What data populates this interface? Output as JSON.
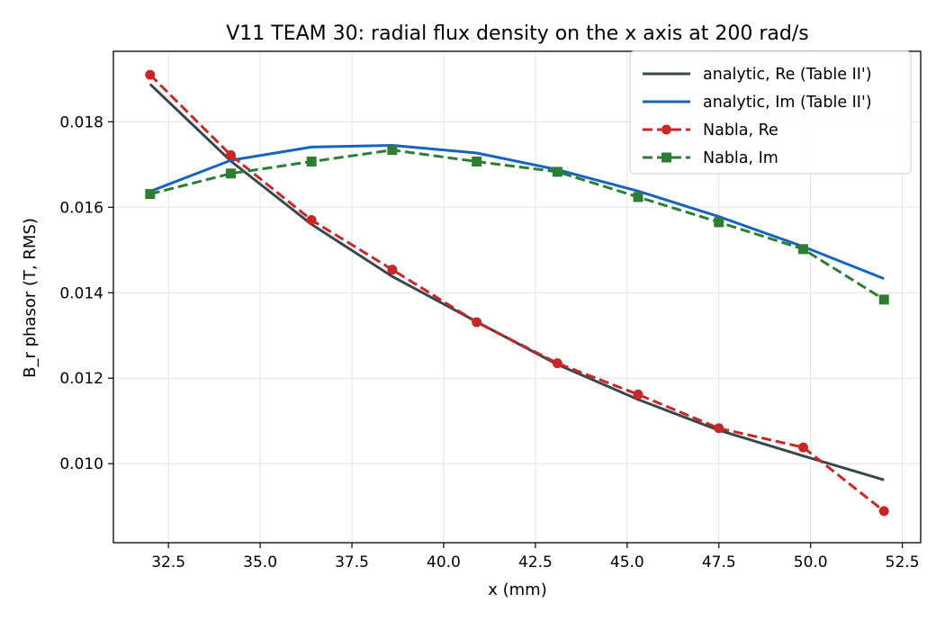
{
  "chart_data": {
    "type": "line",
    "title": "V11 TEAM 30: radial flux density on the x axis at 200 rad/s",
    "xlabel": "x (mm)",
    "ylabel": "B_r phasor (T, RMS)",
    "xlim": [
      31.0,
      53.0
    ],
    "ylim": [
      0.00815,
      0.01965
    ],
    "xticks": [
      32.5,
      35.0,
      37.5,
      40.0,
      42.5,
      45.0,
      47.5,
      50.0,
      52.5
    ],
    "xtick_labels": [
      "32.5",
      "35.0",
      "37.5",
      "40.0",
      "42.5",
      "45.0",
      "47.5",
      "50.0",
      "52.5"
    ],
    "yticks": [
      0.01,
      0.012,
      0.014,
      0.016,
      0.018
    ],
    "ytick_labels": [
      "0.010",
      "0.012",
      "0.014",
      "0.016",
      "0.018"
    ],
    "grid": true,
    "legend_position": "top-right",
    "series": [
      {
        "name": "analytic, Re (Table II')",
        "color": "#37474f",
        "style": "solid",
        "marker": "none",
        "x": [
          32.0,
          34.2,
          36.4,
          38.6,
          40.9,
          43.1,
          45.3,
          47.5,
          49.8,
          52.0
        ],
        "y": [
          0.01888,
          0.01708,
          0.0156,
          0.01438,
          0.01332,
          0.01232,
          0.0115,
          0.01078,
          0.01018,
          0.00962
        ]
      },
      {
        "name": "analytic, Im (Table II')",
        "color": "#1565c0",
        "style": "solid",
        "marker": "none",
        "x": [
          32.0,
          34.2,
          36.4,
          38.6,
          40.9,
          43.1,
          45.3,
          47.5,
          49.8,
          52.0
        ],
        "y": [
          0.01637,
          0.0171,
          0.01741,
          0.01745,
          0.01727,
          0.01688,
          0.01638,
          0.01578,
          0.01508,
          0.01433
        ]
      },
      {
        "name": "Nabla, Re",
        "color": "#c62828",
        "style": "dashed",
        "marker": "circle",
        "x": [
          32.0,
          34.2,
          36.4,
          38.6,
          40.9,
          43.1,
          45.3,
          47.5,
          49.8,
          52.0
        ],
        "y": [
          0.0191,
          0.01722,
          0.0157,
          0.01454,
          0.01331,
          0.01235,
          0.01162,
          0.01083,
          0.01038,
          0.00889
        ]
      },
      {
        "name": "Nabla, Im",
        "color": "#2e7d32",
        "style": "dashed",
        "marker": "square",
        "x": [
          32.0,
          34.2,
          36.4,
          38.6,
          40.9,
          43.1,
          45.3,
          47.5,
          49.8,
          52.0
        ],
        "y": [
          0.01631,
          0.01679,
          0.01707,
          0.01734,
          0.01707,
          0.01683,
          0.01624,
          0.01565,
          0.01502,
          0.01384
        ]
      }
    ]
  }
}
